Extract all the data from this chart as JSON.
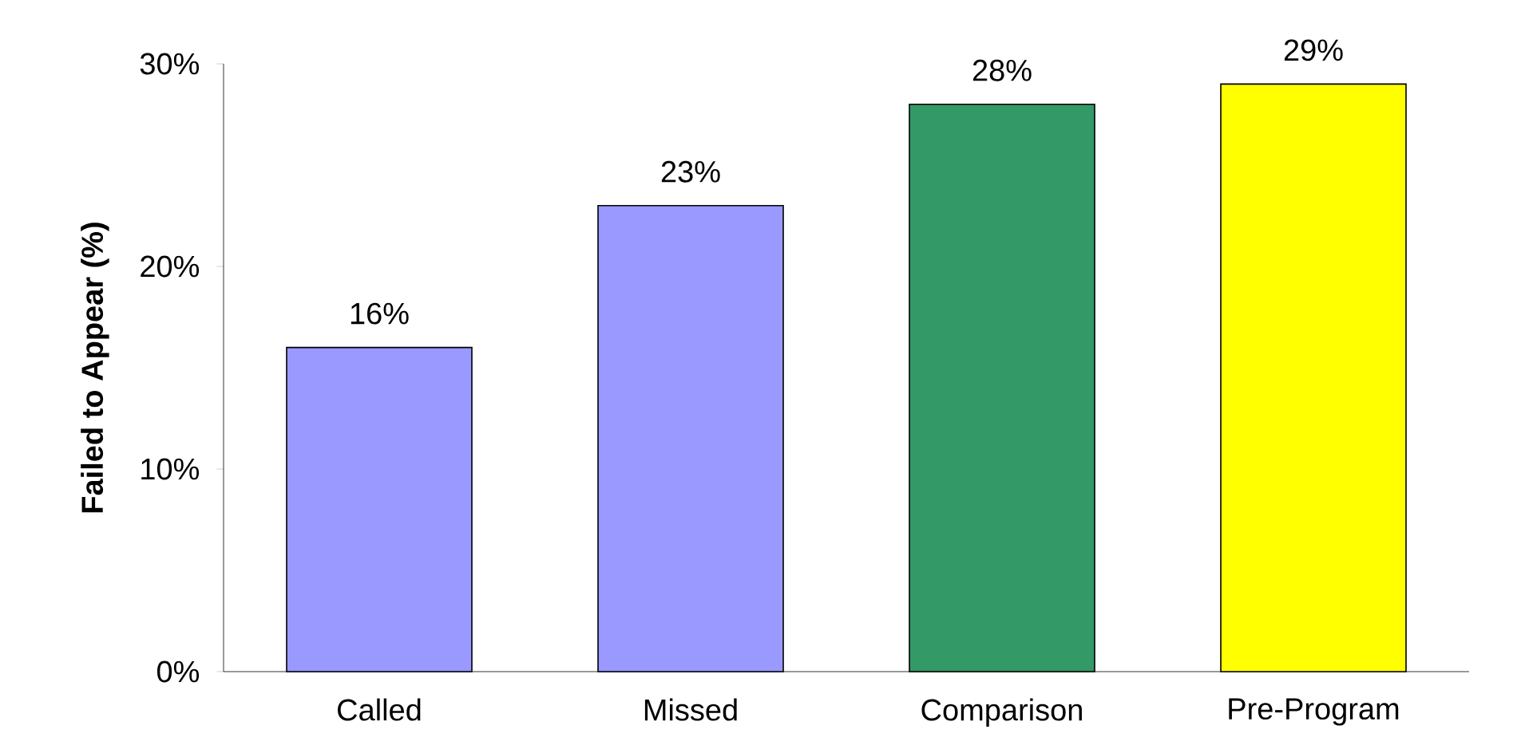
{
  "chart_data": {
    "type": "bar",
    "ylabel": "Failed to Appear (%)",
    "categories": [
      "Called",
      "Missed",
      "Comparison",
      "Pre-Program"
    ],
    "values": [
      16,
      23,
      28,
      29
    ],
    "colors": [
      "#9999ff",
      "#9999ff",
      "#339966",
      "#ffff00"
    ],
    "value_labels": [
      "16%",
      "23%",
      "28%",
      "29%"
    ],
    "ylim": [
      0,
      30
    ],
    "yticks": [
      {
        "value": 0,
        "label": "0%"
      },
      {
        "value": 10,
        "label": "10%"
      },
      {
        "value": 20,
        "label": "20%"
      },
      {
        "value": 30,
        "label": "30%"
      }
    ],
    "grid": false
  }
}
